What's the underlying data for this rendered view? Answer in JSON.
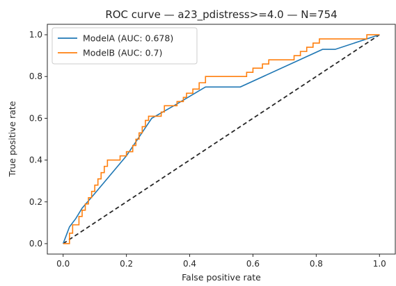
{
  "chart_data": {
    "type": "line",
    "title": "ROC curve — a23_pdistress>=4.0 — N=754",
    "xlabel": "False positive rate",
    "ylabel": "True positive rate",
    "xlim": [
      -0.05,
      1.05
    ],
    "ylim": [
      -0.05,
      1.05
    ],
    "xticks": [
      0.0,
      0.2,
      0.4,
      0.6,
      0.8,
      1.0
    ],
    "yticks": [
      0.0,
      0.2,
      0.4,
      0.6,
      0.8,
      1.0
    ],
    "xtick_labels": [
      "0.0",
      "0.2",
      "0.4",
      "0.6",
      "0.8",
      "1.0"
    ],
    "ytick_labels": [
      "0.0",
      "0.2",
      "0.4",
      "0.6",
      "0.8",
      "1.0"
    ],
    "grid": false,
    "legend_position": "top-left",
    "series": [
      {
        "name": "ModelA (AUC: 0.678)",
        "color": "#1f77b4",
        "style": "solid",
        "points": [
          [
            0.0,
            0.0
          ],
          [
            0.01,
            0.04
          ],
          [
            0.02,
            0.08
          ],
          [
            0.04,
            0.12
          ],
          [
            0.06,
            0.17
          ],
          [
            0.1,
            0.24
          ],
          [
            0.15,
            0.33
          ],
          [
            0.2,
            0.42
          ],
          [
            0.28,
            0.6
          ],
          [
            0.35,
            0.66
          ],
          [
            0.45,
            0.75
          ],
          [
            0.56,
            0.75
          ],
          [
            0.82,
            0.93
          ],
          [
            0.86,
            0.93
          ],
          [
            1.0,
            1.0
          ]
        ]
      },
      {
        "name": "ModelB (AUC: 0.7)",
        "color": "#ff7f0e",
        "style": "step",
        "points": [
          [
            0.0,
            0.0
          ],
          [
            0.02,
            0.0
          ],
          [
            0.02,
            0.05
          ],
          [
            0.03,
            0.05
          ],
          [
            0.03,
            0.09
          ],
          [
            0.05,
            0.09
          ],
          [
            0.05,
            0.13
          ],
          [
            0.06,
            0.13
          ],
          [
            0.06,
            0.16
          ],
          [
            0.07,
            0.16
          ],
          [
            0.07,
            0.19
          ],
          [
            0.08,
            0.19
          ],
          [
            0.08,
            0.22
          ],
          [
            0.09,
            0.22
          ],
          [
            0.09,
            0.25
          ],
          [
            0.1,
            0.25
          ],
          [
            0.1,
            0.28
          ],
          [
            0.11,
            0.28
          ],
          [
            0.11,
            0.31
          ],
          [
            0.12,
            0.31
          ],
          [
            0.12,
            0.34
          ],
          [
            0.13,
            0.34
          ],
          [
            0.13,
            0.37
          ],
          [
            0.14,
            0.37
          ],
          [
            0.14,
            0.4
          ],
          [
            0.18,
            0.4
          ],
          [
            0.18,
            0.42
          ],
          [
            0.2,
            0.42
          ],
          [
            0.2,
            0.44
          ],
          [
            0.22,
            0.44
          ],
          [
            0.22,
            0.47
          ],
          [
            0.23,
            0.47
          ],
          [
            0.23,
            0.5
          ],
          [
            0.24,
            0.5
          ],
          [
            0.24,
            0.53
          ],
          [
            0.25,
            0.53
          ],
          [
            0.25,
            0.56
          ],
          [
            0.26,
            0.56
          ],
          [
            0.26,
            0.59
          ],
          [
            0.27,
            0.59
          ],
          [
            0.27,
            0.61
          ],
          [
            0.31,
            0.61
          ],
          [
            0.31,
            0.63
          ],
          [
            0.32,
            0.63
          ],
          [
            0.32,
            0.66
          ],
          [
            0.36,
            0.66
          ],
          [
            0.36,
            0.68
          ],
          [
            0.38,
            0.68
          ],
          [
            0.38,
            0.7
          ],
          [
            0.39,
            0.7
          ],
          [
            0.39,
            0.72
          ],
          [
            0.41,
            0.72
          ],
          [
            0.41,
            0.74
          ],
          [
            0.43,
            0.74
          ],
          [
            0.43,
            0.77
          ],
          [
            0.45,
            0.77
          ],
          [
            0.45,
            0.8
          ],
          [
            0.58,
            0.8
          ],
          [
            0.58,
            0.82
          ],
          [
            0.6,
            0.82
          ],
          [
            0.6,
            0.84
          ],
          [
            0.63,
            0.84
          ],
          [
            0.63,
            0.86
          ],
          [
            0.65,
            0.86
          ],
          [
            0.65,
            0.88
          ],
          [
            0.73,
            0.88
          ],
          [
            0.73,
            0.9
          ],
          [
            0.75,
            0.9
          ],
          [
            0.75,
            0.92
          ],
          [
            0.77,
            0.92
          ],
          [
            0.77,
            0.94
          ],
          [
            0.79,
            0.94
          ],
          [
            0.79,
            0.96
          ],
          [
            0.81,
            0.96
          ],
          [
            0.81,
            0.98
          ],
          [
            0.96,
            0.98
          ],
          [
            0.96,
            1.0
          ],
          [
            1.0,
            1.0
          ]
        ]
      },
      {
        "name": "",
        "color": "#262626",
        "style": "dashed",
        "points": [
          [
            0.0,
            0.0
          ],
          [
            1.0,
            1.0
          ]
        ]
      }
    ]
  }
}
